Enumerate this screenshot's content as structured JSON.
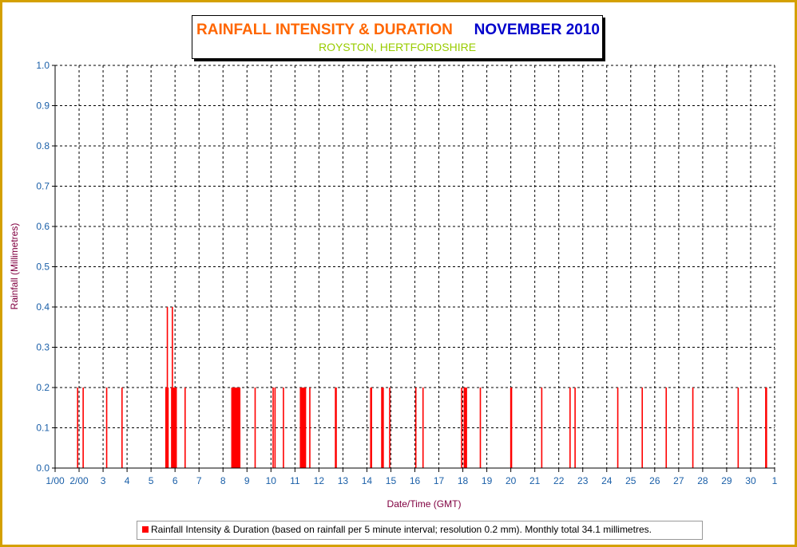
{
  "title": "RAINFALL INTENSITY & DURATION",
  "month_label": "NOVEMBER 2010",
  "subtitle": "ROYSTON, HERTFORDSHIRE",
  "colors": {
    "frame": "#d4a000",
    "title": "#ff6600",
    "month": "#0000cc",
    "subtitle": "#99cc00",
    "bars": "#ff0000",
    "tick_labels": "#1a5fa8",
    "axis_titles": "#800040"
  },
  "legend_text": "Rainfall Intensity & Duration (based on rainfall per 5 minute interval; resolution 0.2 mm). Monthly total 34.1 millimetres.",
  "chart_data": {
    "type": "bar",
    "title": "RAINFALL INTENSITY & DURATION",
    "subtitle": "ROYSTON, HERTFORDSHIRE",
    "xlabel": "Date/Time (GMT)",
    "ylabel": "Rainfall (Millimetres)",
    "ylim": [
      0,
      1.0
    ],
    "xlim": [
      1,
      31
    ],
    "x_unit": "day of November 2010",
    "grid": true,
    "legend_position": "bottom",
    "y_ticks": [
      "0.0",
      "0.1",
      "0.2",
      "0.3",
      "0.4",
      "0.5",
      "0.6",
      "0.7",
      "0.8",
      "0.9",
      "1.0"
    ],
    "x_ticks": [
      {
        "x": 1,
        "label": "1/00"
      },
      {
        "x": 2,
        "label": "2/00"
      },
      {
        "x": 3,
        "label": "3"
      },
      {
        "x": 4,
        "label": "4"
      },
      {
        "x": 5,
        "label": "5"
      },
      {
        "x": 6,
        "label": "6"
      },
      {
        "x": 7,
        "label": "7"
      },
      {
        "x": 8,
        "label": "8"
      },
      {
        "x": 9,
        "label": "9"
      },
      {
        "x": 10,
        "label": "10"
      },
      {
        "x": 11,
        "label": "11"
      },
      {
        "x": 12,
        "label": "12"
      },
      {
        "x": 13,
        "label": "13"
      },
      {
        "x": 14,
        "label": "14"
      },
      {
        "x": 15,
        "label": "15"
      },
      {
        "x": 16,
        "label": "16"
      },
      {
        "x": 17,
        "label": "17"
      },
      {
        "x": 18,
        "label": "18"
      },
      {
        "x": 19,
        "label": "19"
      },
      {
        "x": 20,
        "label": "20"
      },
      {
        "x": 21,
        "label": "21"
      },
      {
        "x": 22,
        "label": "22"
      },
      {
        "x": 23,
        "label": "23"
      },
      {
        "x": 24,
        "label": "24"
      },
      {
        "x": 25,
        "label": "25"
      },
      {
        "x": 26,
        "label": "26"
      },
      {
        "x": 27,
        "label": "27"
      },
      {
        "x": 28,
        "label": "28"
      },
      {
        "x": 29,
        "label": "29"
      },
      {
        "x": 30,
        "label": "30"
      },
      {
        "x": 31,
        "label": "1"
      }
    ],
    "series": [
      {
        "name": "Rainfall Intensity & Duration",
        "bars": [
          {
            "x": 1.94,
            "y": 0.2
          },
          {
            "x": 2.17,
            "y": 0.2
          },
          {
            "x": 3.15,
            "y": 0.2
          },
          {
            "x": 3.79,
            "y": 0.2
          },
          {
            "x": 5.62,
            "y": 0.2
          },
          {
            "x": 5.65,
            "y": 0.2
          },
          {
            "x": 5.68,
            "y": 0.4
          },
          {
            "x": 5.71,
            "y": 0.2
          },
          {
            "x": 5.86,
            "y": 0.2
          },
          {
            "x": 5.89,
            "y": 0.4
          },
          {
            "x": 5.92,
            "y": 0.2
          },
          {
            "x": 5.95,
            "y": 0.2
          },
          {
            "x": 5.98,
            "y": 0.2
          },
          {
            "x": 6.02,
            "y": 0.2
          },
          {
            "x": 6.05,
            "y": 0.2
          },
          {
            "x": 6.42,
            "y": 0.2
          },
          {
            "x": 8.37,
            "y": 0.2
          },
          {
            "x": 8.4,
            "y": 0.2
          },
          {
            "x": 8.43,
            "y": 0.2
          },
          {
            "x": 8.46,
            "y": 0.2
          },
          {
            "x": 8.49,
            "y": 0.2
          },
          {
            "x": 8.52,
            "y": 0.2
          },
          {
            "x": 8.55,
            "y": 0.2
          },
          {
            "x": 8.58,
            "y": 0.2
          },
          {
            "x": 8.61,
            "y": 0.2
          },
          {
            "x": 8.64,
            "y": 0.2
          },
          {
            "x": 8.67,
            "y": 0.2
          },
          {
            "x": 8.7,
            "y": 0.2
          },
          {
            "x": 9.34,
            "y": 0.2
          },
          {
            "x": 10.09,
            "y": 0.2
          },
          {
            "x": 10.17,
            "y": 0.2
          },
          {
            "x": 10.52,
            "y": 0.2
          },
          {
            "x": 11.23,
            "y": 0.2
          },
          {
            "x": 11.26,
            "y": 0.2
          },
          {
            "x": 11.29,
            "y": 0.2
          },
          {
            "x": 11.32,
            "y": 0.2
          },
          {
            "x": 11.35,
            "y": 0.2
          },
          {
            "x": 11.38,
            "y": 0.2
          },
          {
            "x": 11.41,
            "y": 0.2
          },
          {
            "x": 11.44,
            "y": 0.2
          },
          {
            "x": 11.62,
            "y": 0.2
          },
          {
            "x": 12.69,
            "y": 0.2
          },
          {
            "x": 12.72,
            "y": 0.2
          },
          {
            "x": 14.16,
            "y": 0.2
          },
          {
            "x": 14.19,
            "y": 0.2
          },
          {
            "x": 14.62,
            "y": 0.2
          },
          {
            "x": 14.65,
            "y": 0.2
          },
          {
            "x": 14.68,
            "y": 0.2
          },
          {
            "x": 14.95,
            "y": 0.2
          },
          {
            "x": 16.04,
            "y": 0.2
          },
          {
            "x": 16.34,
            "y": 0.2
          },
          {
            "x": 17.95,
            "y": 0.2
          },
          {
            "x": 18.06,
            "y": 0.2
          },
          {
            "x": 18.09,
            "y": 0.2
          },
          {
            "x": 18.12,
            "y": 0.2
          },
          {
            "x": 18.15,
            "y": 0.2
          },
          {
            "x": 18.73,
            "y": 0.2
          },
          {
            "x": 20.0,
            "y": 0.2
          },
          {
            "x": 20.03,
            "y": 0.2
          },
          {
            "x": 21.29,
            "y": 0.2
          },
          {
            "x": 22.47,
            "y": 0.2
          },
          {
            "x": 22.68,
            "y": 0.2
          },
          {
            "x": 24.46,
            "y": 0.2
          },
          {
            "x": 25.48,
            "y": 0.2
          },
          {
            "x": 26.48,
            "y": 0.2
          },
          {
            "x": 27.59,
            "y": 0.2
          },
          {
            "x": 29.48,
            "y": 0.2
          },
          {
            "x": 30.63,
            "y": 0.2
          },
          {
            "x": 30.66,
            "y": 0.2
          }
        ]
      }
    ]
  }
}
